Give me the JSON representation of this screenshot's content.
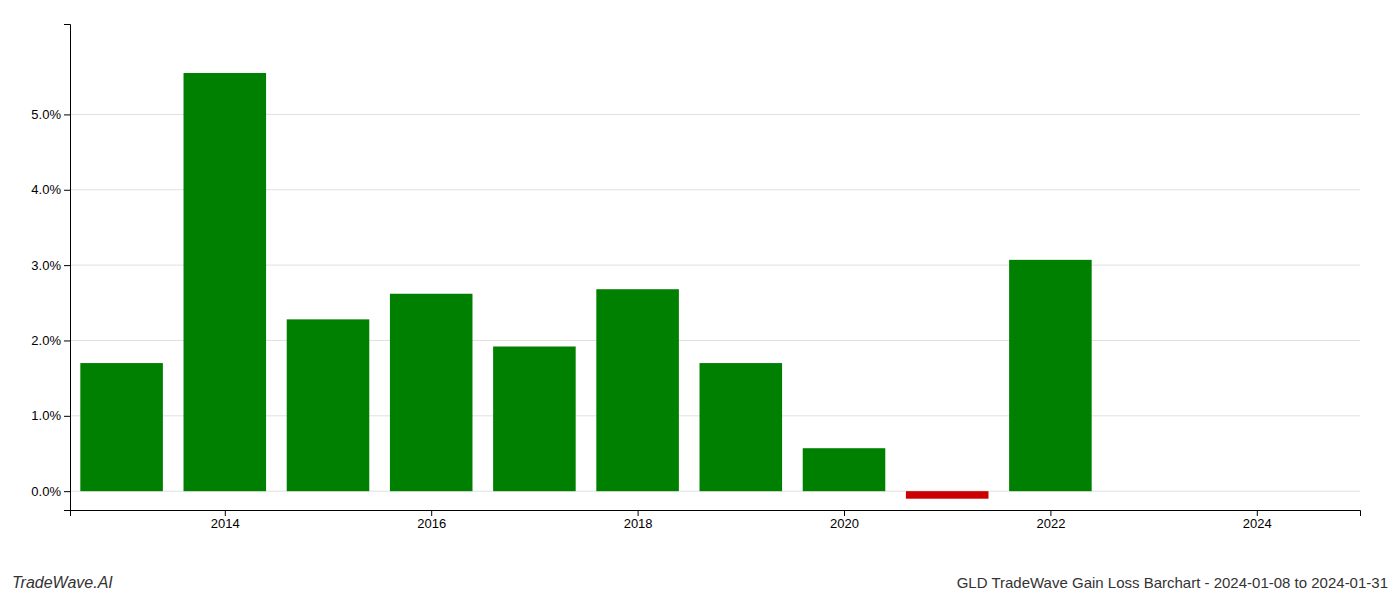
{
  "chart_data": {
    "type": "bar",
    "title": "GLD TradeWave Gain Loss Barchart - 2024-01-08 to 2024-01-31",
    "annotations": [
      "TradeWave.AI"
    ],
    "x": [
      2013,
      2014,
      2015,
      2016,
      2017,
      2018,
      2019,
      2020,
      2021,
      2022,
      2023
    ],
    "values": [
      1.7,
      5.55,
      2.28,
      2.62,
      1.92,
      2.68,
      1.7,
      0.57,
      -0.1,
      3.07,
      0.0
    ],
    "colors": [
      "#008000",
      "#008000",
      "#008000",
      "#008000",
      "#008000",
      "#008000",
      "#008000",
      "#008000",
      "#cc0000",
      "#008000",
      "#008000"
    ],
    "xlim": [
      2012.5,
      2025.0
    ],
    "xticks": [
      2014,
      2016,
      2018,
      2020,
      2022,
      2024
    ],
    "ylim": [
      -0.25,
      6.2
    ],
    "yticks": [
      {
        "value": 0.0,
        "label": "0.0%"
      },
      {
        "value": 1.0,
        "label": "1.0%"
      },
      {
        "value": 2.0,
        "label": "2.0%"
      },
      {
        "value": 3.0,
        "label": "3.0%"
      },
      {
        "value": 4.0,
        "label": "4.0%"
      },
      {
        "value": 5.0,
        "label": "5.0%"
      }
    ],
    "grid": true
  }
}
